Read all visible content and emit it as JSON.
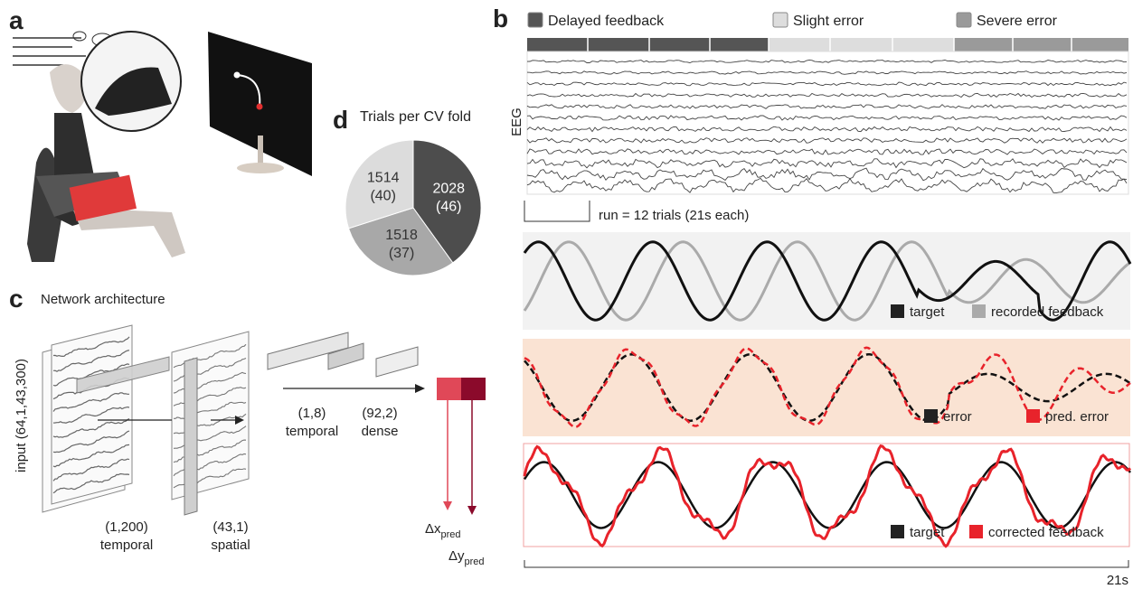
{
  "panels": [
    "a",
    "b",
    "c",
    "d"
  ],
  "eeg": {
    "legend": [
      {
        "label": "Delayed feedback",
        "color": "#555555"
      },
      {
        "label": "Slight error",
        "color": "#dddddd"
      },
      {
        "label": "Severe error",
        "color": "#9a9a9a"
      }
    ],
    "axis_label": "EEG",
    "scale_label": "run = 12 trials (21s each)"
  },
  "traces": [
    {
      "legend": [
        {
          "label": "target",
          "color": "#222222"
        },
        {
          "label": "recorded feedback",
          "color": "#aaaaaa"
        }
      ]
    },
    {
      "legend": [
        {
          "label": "error",
          "color": "#222222"
        },
        {
          "label": "pred. error",
          "color": "#e8232b"
        }
      ]
    },
    {
      "legend": [
        {
          "label": "target",
          "color": "#222222"
        },
        {
          "label": "corrected feedback",
          "color": "#e8232b"
        }
      ]
    }
  ],
  "time_label": "21s",
  "network": {
    "title": "Network architecture",
    "input_label": "input (64,1,43,300)",
    "layers": [
      {
        "shape": "(1,200)",
        "kind": "temporal"
      },
      {
        "shape": "(43,1)",
        "kind": "spatial"
      },
      {
        "shape": "(1,8)",
        "kind": "temporal"
      },
      {
        "shape": "(92,2)",
        "kind": "dense"
      }
    ],
    "outputs": [
      {
        "symbol": "Δx",
        "subscript": "pred",
        "color": "#e04858"
      },
      {
        "symbol": "Δy",
        "subscript": "pred",
        "color": "#8b0a2b"
      }
    ]
  },
  "chart_data": {
    "type": "pie",
    "title": "Trials per CV fold",
    "values": [
      2028,
      1518,
      1514
    ],
    "count_labels": [
      "(46)",
      "(37)",
      "(40)"
    ],
    "colors": [
      "#4d4d4d",
      "#a8a8a8",
      "#dcdcdc"
    ]
  }
}
